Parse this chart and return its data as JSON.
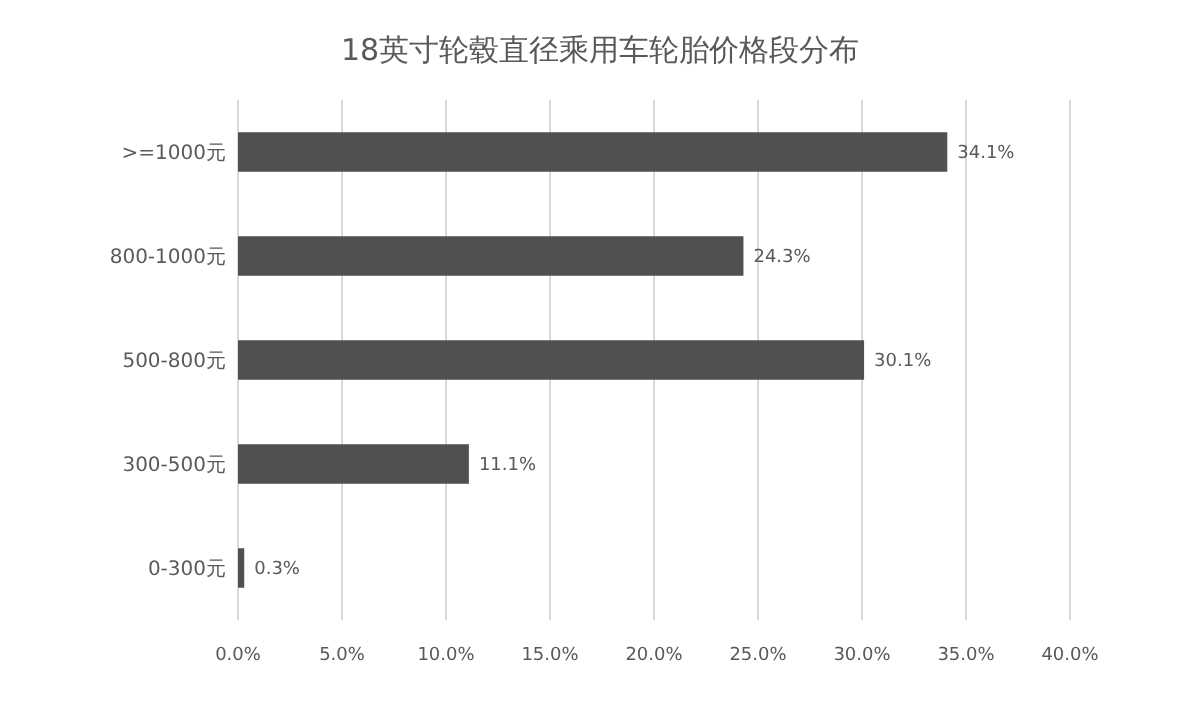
{
  "chart_data": {
    "type": "bar",
    "orientation": "horizontal",
    "title": "18英寸轮毂直径乘用车轮胎价格段分布",
    "categories": [
      ">=1000元",
      "800-1000元",
      "500-800元",
      "300-500元",
      "0-300元"
    ],
    "values": [
      34.1,
      24.3,
      30.1,
      11.1,
      0.3
    ],
    "value_labels": [
      "34.1%",
      "24.3%",
      "30.1%",
      "11.1%",
      "0.3%"
    ],
    "color": "#505050",
    "xlim": [
      0,
      40
    ],
    "xticks": [
      {
        "value": 0,
        "label": "0.0%"
      },
      {
        "value": 5,
        "label": "5.0%"
      },
      {
        "value": 10,
        "label": "10.0%"
      },
      {
        "value": 15,
        "label": "15.0%"
      },
      {
        "value": 20,
        "label": "20.0%"
      },
      {
        "value": 25,
        "label": "25.0%"
      },
      {
        "value": 30,
        "label": "30.0%"
      },
      {
        "value": 35,
        "label": "35.0%"
      },
      {
        "value": 40,
        "label": "40.0%"
      }
    ],
    "grid": "x"
  }
}
